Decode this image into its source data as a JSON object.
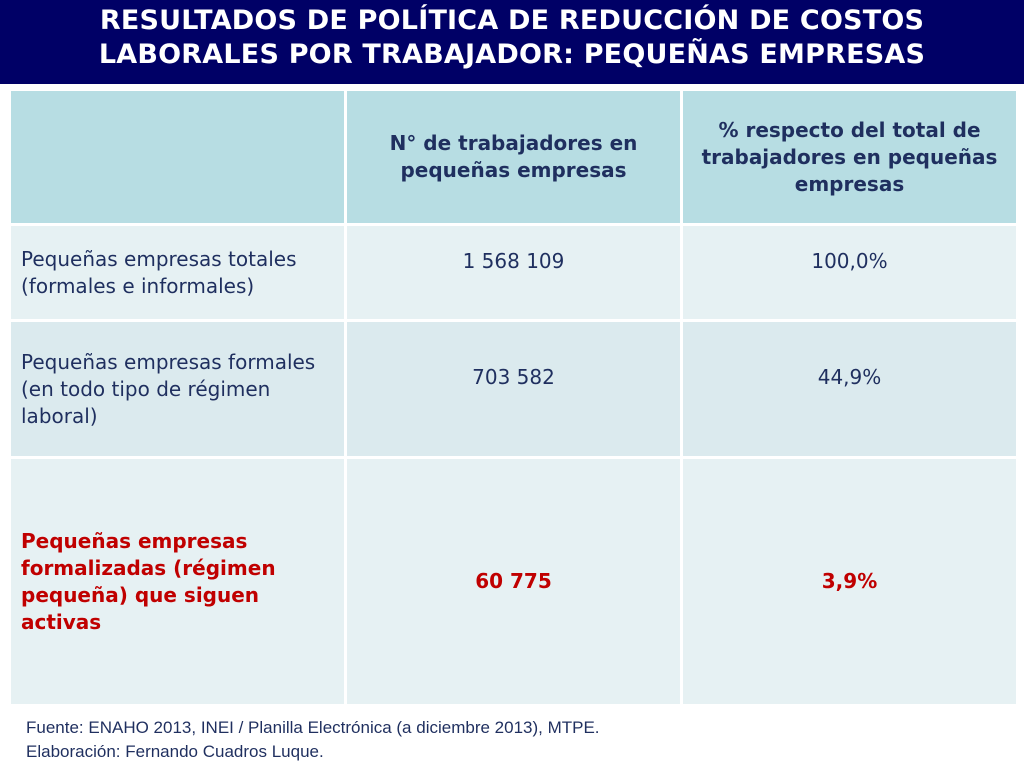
{
  "title": {
    "line1": "RESULTADOS DE POLÍTICA DE REDUCCIÓN DE COSTOS",
    "line2": "LABORALES POR TRABAJADOR: PEQUEÑAS EMPRESAS"
  },
  "table": {
    "headers": [
      "",
      "N° de trabajadores en pequeñas empresas",
      "% respecto del total de trabajadores en pequeñas empresas"
    ],
    "rows": [
      {
        "label": "Pequeñas empresas totales (formales e informales)",
        "workers": "1 568 109",
        "percent": "100,0%"
      },
      {
        "label": "Pequeñas empresas formales (en todo tipo de régimen laboral)",
        "workers": "703 582",
        "percent": "44,9%"
      },
      {
        "label": "Pequeñas empresas formalizadas (régimen pequeña) que siguen activas",
        "workers": "60 775",
        "percent": "3,9%"
      }
    ]
  },
  "footer": {
    "source": "Fuente: ENAHO 2013, INEI / Planilla Electrónica (a diciembre 2013), MTPE.",
    "author": "Elaboración: Fernando Cuadros Luque."
  },
  "colors": {
    "title_bg": "#000066",
    "header_bg": "#b7dde3",
    "row_bg": "#e6f1f3",
    "text": "#1f2f5f",
    "highlight": "#c00000"
  }
}
